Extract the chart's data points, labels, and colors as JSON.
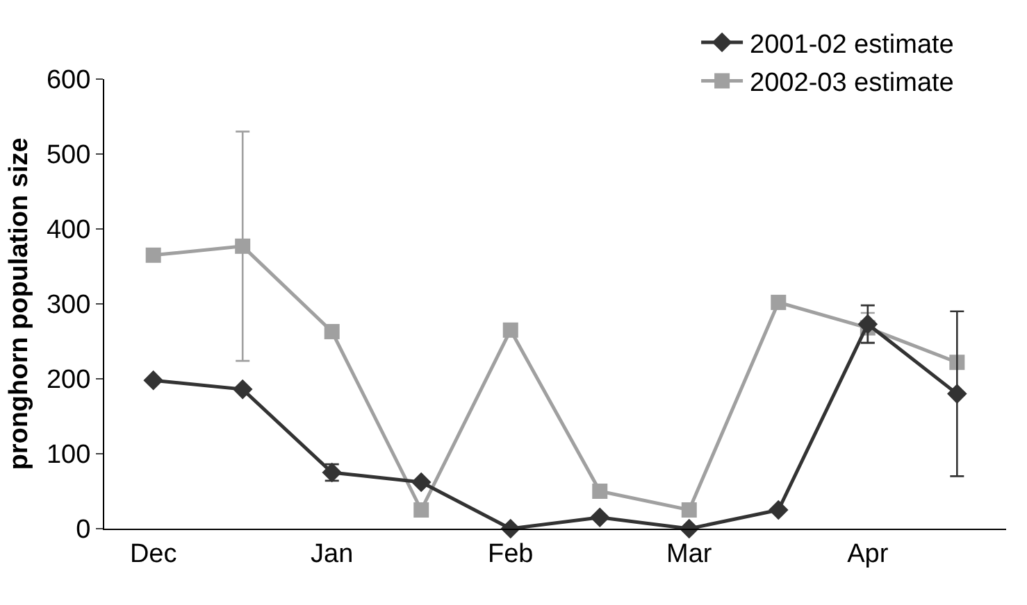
{
  "chart_data": {
    "type": "line",
    "ylabel": "pronghorn population size",
    "categories": [
      "Dec",
      null,
      "Jan",
      null,
      "Feb",
      null,
      "Mar",
      null,
      "Apr",
      null
    ],
    "series": [
      {
        "name": "2001-02 estimate",
        "color": "#333333",
        "marker": "diamond",
        "values": [
          198,
          186,
          75,
          62,
          0,
          15,
          0,
          25,
          273,
          180
        ],
        "errors": [
          null,
          null,
          11,
          null,
          null,
          null,
          null,
          null,
          25,
          110
        ]
      },
      {
        "name": "2002-03 estimate",
        "color": "#a0a0a0",
        "marker": "square",
        "values": [
          365,
          377,
          263,
          25,
          265,
          50,
          25,
          302,
          268,
          222
        ],
        "errors": [
          null,
          153,
          null,
          null,
          null,
          null,
          null,
          null,
          20,
          null
        ]
      }
    ],
    "ylim": [
      0,
      600
    ],
    "yticks": [
      0,
      100,
      200,
      300,
      400,
      500,
      600
    ],
    "grid": false,
    "legend": "top right",
    "line_style": "solid"
  }
}
